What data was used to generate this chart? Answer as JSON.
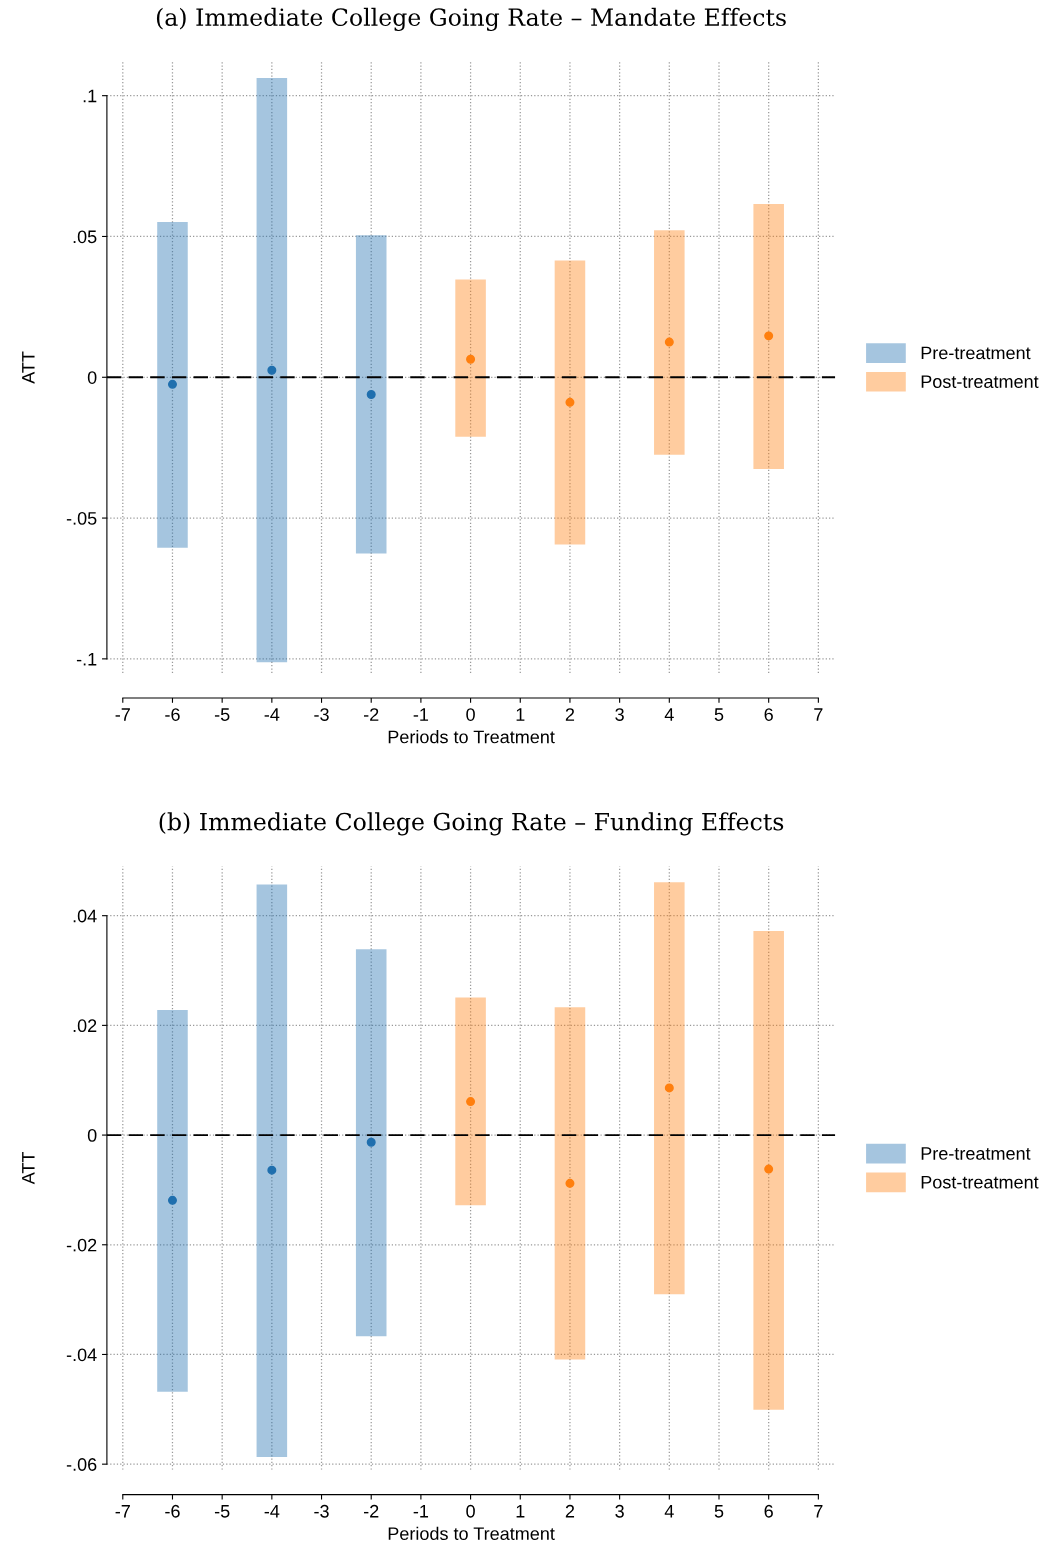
{
  "chart_data": [
    {
      "type": "scatter",
      "title": "(a) Immediate College Going Rate – Mandate Effects",
      "xlabel": "Periods to Treatment",
      "ylabel": "ATT",
      "xlim": [
        -7.32,
        7.34
      ],
      "xticks": [
        -7,
        -6,
        -5,
        -4,
        -3,
        -2,
        -1,
        0,
        1,
        2,
        3,
        4,
        5,
        6,
        7
      ],
      "ylim": [
        -0.105,
        0.112
      ],
      "yticks": [
        {
          "value": -0.1,
          "label": "-.1"
        },
        {
          "value": -0.05,
          "label": "-.05"
        },
        0,
        {
          "value": 0.05,
          "label": ".05"
        },
        {
          "value": 0.1,
          "label": ".1"
        }
      ],
      "grid": true,
      "legend": "right",
      "marker": "circle",
      "ref_lines": [
        {
          "axis": "y",
          "value": 0,
          "line_style": "dashed",
          "color": "#000000"
        }
      ],
      "series": [
        {
          "name": "Pre-treatment",
          "color": "#1f6fae",
          "x": [
            -6,
            -4,
            -2
          ],
          "values": [
            -0.0025,
            0.0025,
            -0.0061
          ],
          "errors": [
            [
              -0.0605,
              0.0551
            ],
            [
              -0.1012,
              0.1063
            ],
            [
              -0.0626,
              0.0504
            ]
          ]
        },
        {
          "name": "Post-treatment",
          "color": "#ff7f0e",
          "x": [
            0,
            2,
            4,
            6
          ],
          "values": [
            0.0064,
            -0.0089,
            0.0125,
            0.0147
          ],
          "errors": [
            [
              -0.0211,
              0.0347
            ],
            [
              -0.0594,
              0.0415
            ],
            [
              -0.0275,
              0.0522
            ],
            [
              -0.0326,
              0.0615
            ]
          ]
        }
      ]
    },
    {
      "type": "scatter",
      "title": "(b) Immediate College Going Rate – Funding Effects",
      "xlabel": "Periods to Treatment",
      "ylabel": "ATT",
      "xlim": [
        -7.32,
        7.34
      ],
      "xticks": [
        -7,
        -6,
        -5,
        -4,
        -3,
        -2,
        -1,
        0,
        1,
        2,
        3,
        4,
        5,
        6,
        7
      ],
      "ylim": [
        -0.061,
        0.049
      ],
      "yticks": [
        {
          "value": -0.06,
          "label": "-.06"
        },
        {
          "value": -0.04,
          "label": "-.04"
        },
        {
          "value": -0.02,
          "label": "-.02"
        },
        0,
        {
          "value": 0.02,
          "label": ".02"
        },
        {
          "value": 0.04,
          "label": ".04"
        }
      ],
      "grid": true,
      "legend": "right",
      "marker": "circle",
      "ref_lines": [
        {
          "axis": "y",
          "value": 0,
          "line_style": "dashed",
          "color": "#000000"
        }
      ],
      "series": [
        {
          "name": "Pre-treatment",
          "color": "#1f6fae",
          "x": [
            -6,
            -4,
            -2
          ],
          "values": [
            -0.0119,
            -0.0064,
            -0.0013
          ],
          "errors": [
            [
              -0.0468,
              0.0228
            ],
            [
              -0.0587,
              0.0457
            ],
            [
              -0.0367,
              0.0339
            ]
          ]
        },
        {
          "name": "Post-treatment",
          "color": "#ff7f0e",
          "x": [
            0,
            2,
            4,
            6
          ],
          "values": [
            0.0061,
            -0.0088,
            0.0086,
            -0.0062
          ],
          "errors": [
            [
              -0.0128,
              0.0251
            ],
            [
              -0.0409,
              0.0233
            ],
            [
              -0.029,
              0.0461
            ],
            [
              -0.0501,
              0.0372
            ]
          ]
        }
      ]
    }
  ]
}
